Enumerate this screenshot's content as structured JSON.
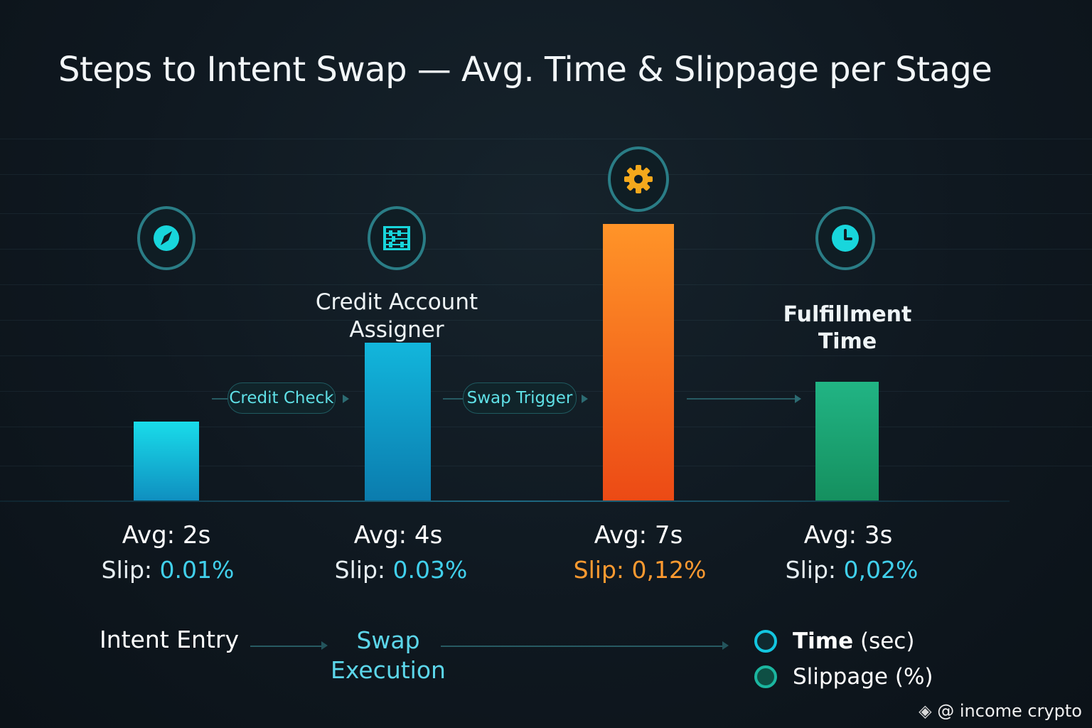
{
  "title": "Steps to Intent Swap — Avg. Time & Slippage per Stage",
  "chart_data": {
    "type": "bar",
    "title": "Steps to Intent Swap — Avg. Time & Slippage per Stage",
    "ylabel": "",
    "ylim": [
      0,
      8
    ],
    "grid": true,
    "legend_placement": "bottom-right",
    "series": [
      {
        "name": "Time (sec)",
        "values": [
          2,
          4,
          7,
          3
        ]
      }
    ],
    "bars": [
      {
        "time_sec": 2,
        "avg_label": "Avg: 2s",
        "slip_prefix": "Slip: ",
        "slip_value": "0.01%",
        "icon": "compass-icon",
        "stage_label": "",
        "color_top": "#19dcea",
        "color_bottom": "#0f8fc0",
        "slip_color": "#41d0ec"
      },
      {
        "time_sec": 4,
        "avg_label": "Avg: 4s",
        "slip_prefix": "Slip: ",
        "slip_value": "0.03%",
        "icon": "abacus-icon",
        "stage_label": "Credit Account Assigner",
        "color_top": "#12b6dc",
        "color_bottom": "#0b7cae",
        "slip_color": "#41d0ec"
      },
      {
        "time_sec": 7,
        "avg_label": "Avg: 7s",
        "slip_prefix": "Slip: ",
        "slip_value": "0,12%",
        "icon": "gear-icon",
        "stage_label": "",
        "color_top": "#ff9428",
        "color_bottom": "#ec4a15",
        "slip_color": "#ff9a30"
      },
      {
        "time_sec": 3,
        "avg_label": "Avg: 3s",
        "slip_prefix": "Slip: ",
        "slip_value": "0,02%",
        "icon": "clock-icon",
        "stage_label": "Fulfillment Time",
        "color_top": "#21b484",
        "color_bottom": "#15905f",
        "slip_color": "#41d0ec"
      }
    ],
    "pills": [
      "Credit Check",
      "Swap Trigger"
    ],
    "flow": {
      "step1": "Intent Entry",
      "step2": "Swap Execution"
    },
    "legend": [
      {
        "name": "Time",
        "unit": "(sec)",
        "color": "#13c6e0"
      },
      {
        "name": "Slippage",
        "unit": "(%)",
        "color": "#1f9e7a"
      }
    ]
  },
  "stage_label_credit": {
    "line1": "Credit Account",
    "line2": "Assigner"
  },
  "stage_label_fulfill": {
    "line1": "Fulfillment",
    "line2": "Time"
  },
  "flow_step2": {
    "line1": "Swap",
    "line2": "Execution"
  },
  "watermark": "@ income crypto",
  "colors": {
    "accent_teal": "#41d0ec",
    "accent_orange": "#ff9a30",
    "ring": "#2a7d86"
  }
}
